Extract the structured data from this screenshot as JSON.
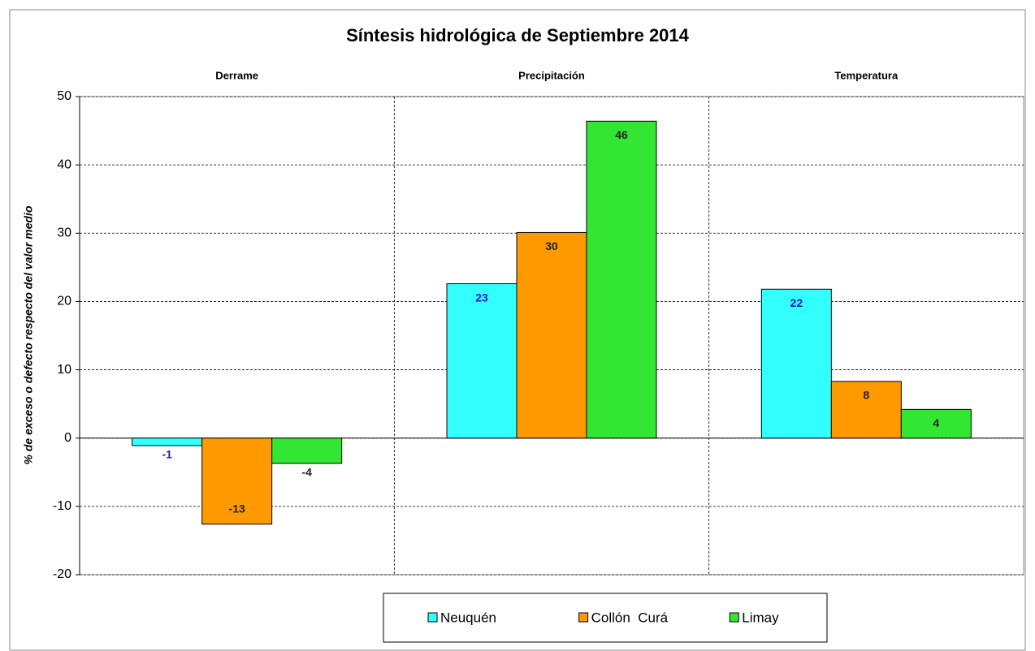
{
  "chart_data": {
    "type": "bar",
    "title": "Síntesis hidrológica de Septiembre 2014",
    "y_label": "% de exceso o defecto respecto  del valor medio",
    "categories": [
      "Derrame",
      "Precipitación",
      "Temperatura"
    ],
    "series": [
      {
        "name": "Neuquén",
        "color": "#33ffff",
        "label_color": "#1a1ad6",
        "values": [
          -1.1,
          22.6,
          21.8
        ],
        "value_labels": [
          "-1",
          "23",
          "22"
        ]
      },
      {
        "name": "Collón  Curá",
        "color": "#ff9900",
        "label_color": "#222222",
        "values": [
          -12.6,
          30.1,
          8.3
        ],
        "value_labels": [
          "-13",
          "30",
          "8"
        ]
      },
      {
        "name": "Limay",
        "color": "#33e633",
        "label_color": "#222222",
        "values": [
          -3.7,
          46.4,
          4.2
        ],
        "value_labels": [
          "-4",
          "46",
          "4"
        ]
      }
    ],
    "ylim": [
      -20,
      50
    ],
    "yticks": [
      -20,
      -10,
      0,
      10,
      20,
      30,
      40,
      50
    ],
    "grid": true,
    "legend": "bottom"
  }
}
